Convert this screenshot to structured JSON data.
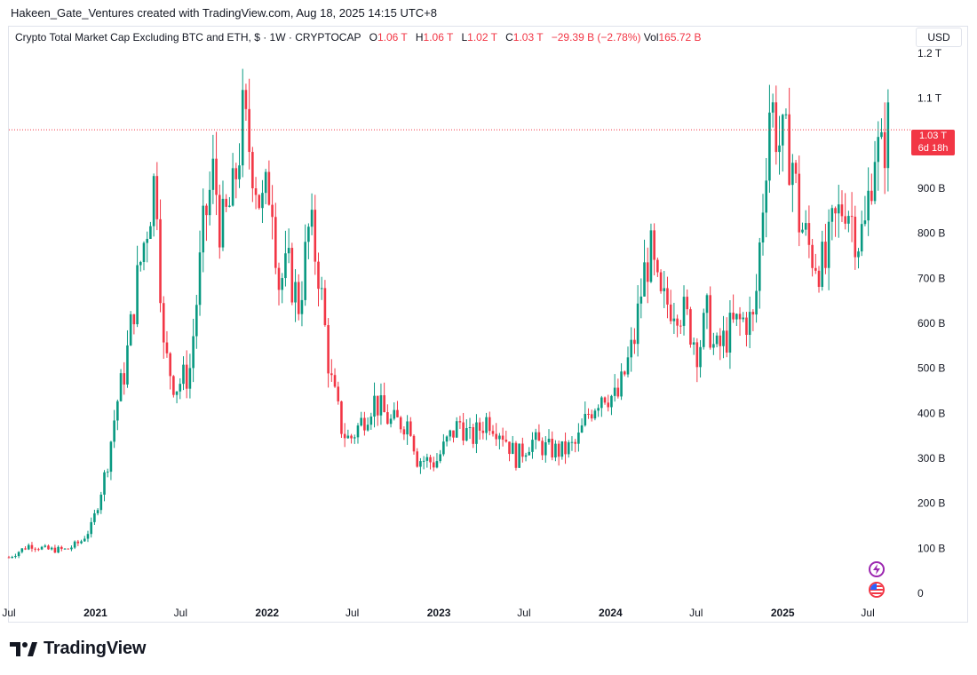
{
  "header": {
    "attribution": "Hakeen_Gate_Ventures created with TradingView.com, Aug 18, 2025 14:15 UTC+8"
  },
  "legend": {
    "symbol": "Crypto Total Market Cap Excluding BTC and ETH, $ · 1W · CRYPTOCAP",
    "open_label": "O",
    "open_value": "1.06 T",
    "high_label": "H",
    "high_value": "1.06 T",
    "low_label": "L",
    "low_value": "1.02 T",
    "close_label": "C",
    "close_value": "1.03 T",
    "change": "−29.39 B (−2.78%)",
    "volume_label": "Vol",
    "volume_value": "165.72 B"
  },
  "currency": "USD",
  "price_tag": {
    "price": "1.03 T",
    "countdown": "6d 18h"
  },
  "footer": {
    "brand": "TradingView"
  },
  "colors": {
    "up": "#089981",
    "down": "#f23645",
    "grid": "#e0e3eb",
    "text": "#131722"
  },
  "icons": [
    "tradingview-logo-icon",
    "lightning-icon",
    "us-flag-icon"
  ],
  "chart_data": {
    "type": "candlestick",
    "interval": "1W",
    "y_unit": "USD (B)",
    "ylim": [
      0,
      1200
    ],
    "ytick_values": [
      0,
      100,
      200,
      300,
      400,
      500,
      600,
      700,
      800,
      900,
      1000,
      1100,
      1200
    ],
    "ytick_labels": [
      "0",
      "100 B",
      "200 B",
      "300 B",
      "400 B",
      "500 B",
      "600 B",
      "700 B",
      "800 B",
      "900 B",
      "",
      "1.1 T",
      "1.2 T"
    ],
    "xlim": [
      "2020-07-01",
      "2025-09-20"
    ],
    "xticks": [
      {
        "date": "2020-07-01",
        "label": "Jul",
        "bold": false
      },
      {
        "date": "2021-01-01",
        "label": "2021",
        "bold": true
      },
      {
        "date": "2021-07-01",
        "label": "Jul",
        "bold": false
      },
      {
        "date": "2022-01-01",
        "label": "2022",
        "bold": true
      },
      {
        "date": "2022-07-01",
        "label": "Jul",
        "bold": false
      },
      {
        "date": "2023-01-01",
        "label": "2023",
        "bold": true
      },
      {
        "date": "2023-07-01",
        "label": "Jul",
        "bold": false
      },
      {
        "date": "2024-01-01",
        "label": "2024",
        "bold": true
      },
      {
        "date": "2024-07-01",
        "label": "Jul",
        "bold": false
      },
      {
        "date": "2025-01-01",
        "label": "2025",
        "bold": true
      },
      {
        "date": "2025-07-01",
        "label": "Jul",
        "bold": false
      }
    ],
    "current_price": 1030,
    "grid": false,
    "close_path": [
      [
        "2020-07-01",
        80
      ],
      [
        "2020-08-15",
        108
      ],
      [
        "2020-09-20",
        97
      ],
      [
        "2020-11-01",
        97
      ],
      [
        "2020-12-01",
        115
      ],
      [
        "2020-12-25",
        150
      ],
      [
        "2021-01-25",
        280
      ],
      [
        "2021-02-15",
        420
      ],
      [
        "2021-03-05",
        500
      ],
      [
        "2021-04-01",
        700
      ],
      [
        "2021-05-10",
        940
      ],
      [
        "2021-05-25",
        540
      ],
      [
        "2021-06-20",
        460
      ],
      [
        "2021-07-20",
        490
      ],
      [
        "2021-08-20",
        820
      ],
      [
        "2021-09-10",
        940
      ],
      [
        "2021-09-25",
        800
      ],
      [
        "2021-10-20",
        880
      ],
      [
        "2021-11-10",
        1050
      ],
      [
        "2021-11-30",
        970
      ],
      [
        "2021-12-20",
        850
      ],
      [
        "2022-01-10",
        920
      ],
      [
        "2022-01-25",
        690
      ],
      [
        "2022-02-15",
        720
      ],
      [
        "2022-03-10",
        640
      ],
      [
        "2022-04-01",
        820
      ],
      [
        "2022-04-20",
        720
      ],
      [
        "2022-05-15",
        480
      ],
      [
        "2022-06-10",
        360
      ],
      [
        "2022-06-25",
        340
      ],
      [
        "2022-07-20",
        380
      ],
      [
        "2022-08-15",
        430
      ],
      [
        "2022-09-20",
        380
      ],
      [
        "2022-11-01",
        380
      ],
      [
        "2022-11-15",
        300
      ],
      [
        "2022-12-25",
        290
      ],
      [
        "2023-01-20",
        340
      ],
      [
        "2023-02-15",
        380
      ],
      [
        "2023-03-10",
        340
      ],
      [
        "2023-04-15",
        390
      ],
      [
        "2023-05-15",
        360
      ],
      [
        "2023-06-15",
        300
      ],
      [
        "2023-07-15",
        340
      ],
      [
        "2023-08-20",
        320
      ],
      [
        "2023-09-20",
        315
      ],
      [
        "2023-10-20",
        330
      ],
      [
        "2023-11-15",
        400
      ],
      [
        "2023-12-15",
        450
      ],
      [
        "2024-01-15",
        430
      ],
      [
        "2024-02-20",
        560
      ],
      [
        "2024-03-10",
        700
      ],
      [
        "2024-03-25",
        760
      ],
      [
        "2024-04-15",
        640
      ],
      [
        "2024-05-20",
        650
      ],
      [
        "2024-06-15",
        600
      ],
      [
        "2024-07-05",
        540
      ],
      [
        "2024-07-25",
        620
      ],
      [
        "2024-08-10",
        530
      ],
      [
        "2024-09-15",
        590
      ],
      [
        "2024-10-15",
        610
      ],
      [
        "2024-11-01",
        600
      ],
      [
        "2024-11-15",
        800
      ],
      [
        "2024-12-05",
        1100
      ],
      [
        "2024-12-25",
        1000
      ],
      [
        "2025-01-20",
        980
      ],
      [
        "2025-02-05",
        830
      ],
      [
        "2025-03-01",
        760
      ],
      [
        "2025-04-01",
        720
      ],
      [
        "2025-04-15",
        800
      ],
      [
        "2025-05-15",
        880
      ],
      [
        "2025-06-10",
        790
      ],
      [
        "2025-06-25",
        810
      ],
      [
        "2025-07-15",
        1000
      ],
      [
        "2025-07-29",
        960
      ],
      [
        "2025-08-11",
        1040
      ],
      [
        "2025-08-18",
        1030
      ]
    ]
  }
}
